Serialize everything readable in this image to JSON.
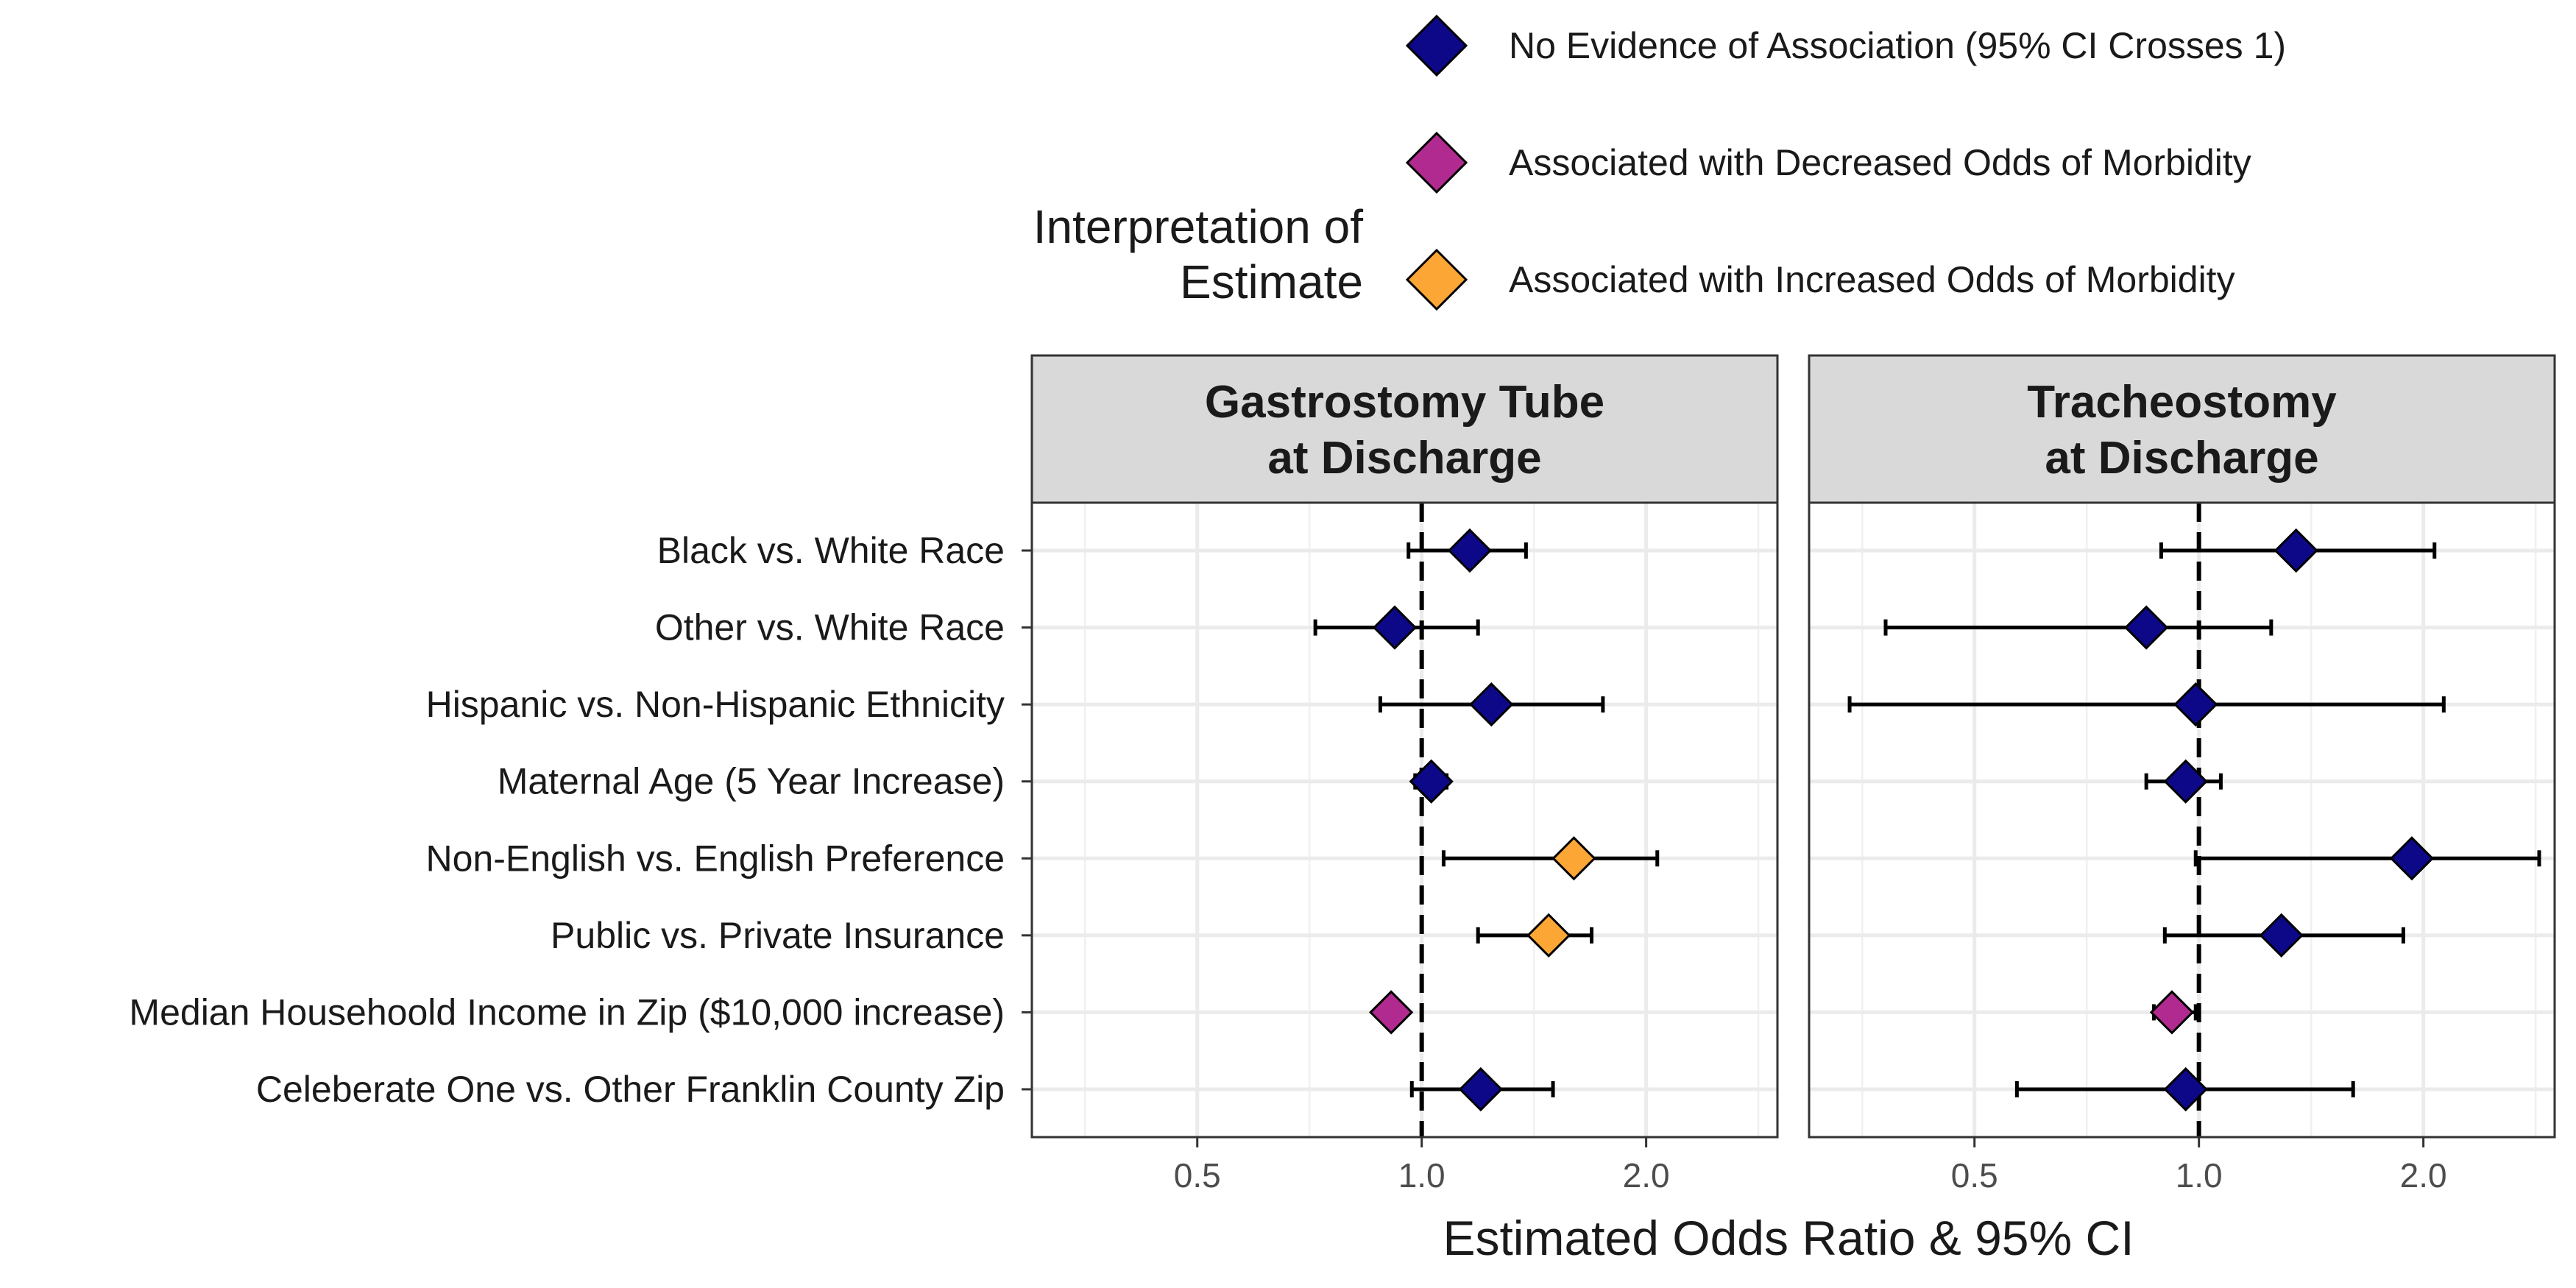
{
  "chart_data": {
    "type": "scatter",
    "subtype": "forest-plot",
    "xlabel": "Estimated Odds Ratio & 95% CI",
    "x_scale": "log",
    "x_ticks": [
      "0.5",
      "1.0",
      "2.0"
    ],
    "x_tick_values": [
      0.5,
      1.0,
      2.0
    ],
    "xlim": [
      0.3,
      3.0
    ],
    "reference_line": 1.0,
    "grid": true,
    "legend": {
      "title_lines": [
        "Interpretation of",
        "Estimate"
      ],
      "position": "top",
      "entries": [
        {
          "key": "none",
          "label": "No Evidence of Association (95% CI Crosses 1)",
          "color": "#0d0887"
        },
        {
          "key": "decreased",
          "label": "Associated with Decreased Odds of Morbidity",
          "color": "#b12a90"
        },
        {
          "key": "increased",
          "label": "Associated with Increased Odds of Morbidity",
          "color": "#fca636"
        }
      ]
    },
    "categories": [
      "Black vs. White Race",
      "Other vs. White Race",
      "Hispanic vs. Non-Hispanic Ethnicity",
      "Maternal Age (5 Year Increase)",
      "Non-English vs. English Preference",
      "Public vs. Private Insurance",
      "Median Househoold Income in Zip ($10,000 increase)",
      "Celeberate One vs. Other Franklin County Zip"
    ],
    "panels": [
      {
        "title_lines": [
          "Gastrostomy Tube",
          "at Discharge"
        ],
        "points": [
          {
            "or": 1.16,
            "lo": 0.96,
            "hi": 1.38,
            "group": "none"
          },
          {
            "or": 0.92,
            "lo": 0.72,
            "hi": 1.19,
            "group": "none"
          },
          {
            "or": 1.24,
            "lo": 0.88,
            "hi": 1.75,
            "group": "none"
          },
          {
            "or": 1.03,
            "lo": 0.98,
            "hi": 1.08,
            "group": "none"
          },
          {
            "or": 1.6,
            "lo": 1.07,
            "hi": 2.07,
            "group": "increased"
          },
          {
            "or": 1.48,
            "lo": 1.19,
            "hi": 1.69,
            "group": "increased"
          },
          {
            "or": 0.91,
            "lo": 0.91,
            "hi": 0.91,
            "group": "decreased"
          },
          {
            "or": 1.2,
            "lo": 0.97,
            "hi": 1.5,
            "group": "none"
          }
        ]
      },
      {
        "title_lines": [
          "Tracheostomy",
          "at Discharge"
        ],
        "points": [
          {
            "or": 1.35,
            "lo": 0.89,
            "hi": 2.07,
            "group": "none"
          },
          {
            "or": 0.85,
            "lo": 0.38,
            "hi": 1.25,
            "group": "none"
          },
          {
            "or": 0.99,
            "lo": 0.34,
            "hi": 2.13,
            "group": "none"
          },
          {
            "or": 0.96,
            "lo": 0.85,
            "hi": 1.07,
            "group": "none"
          },
          {
            "or": 1.93,
            "lo": 0.99,
            "hi": 2.86,
            "group": "none"
          },
          {
            "or": 1.29,
            "lo": 0.9,
            "hi": 1.88,
            "group": "none"
          },
          {
            "or": 0.92,
            "lo": 0.87,
            "hi": 0.99,
            "group": "decreased"
          },
          {
            "or": 0.96,
            "lo": 0.57,
            "hi": 1.61,
            "group": "none"
          }
        ]
      }
    ]
  }
}
